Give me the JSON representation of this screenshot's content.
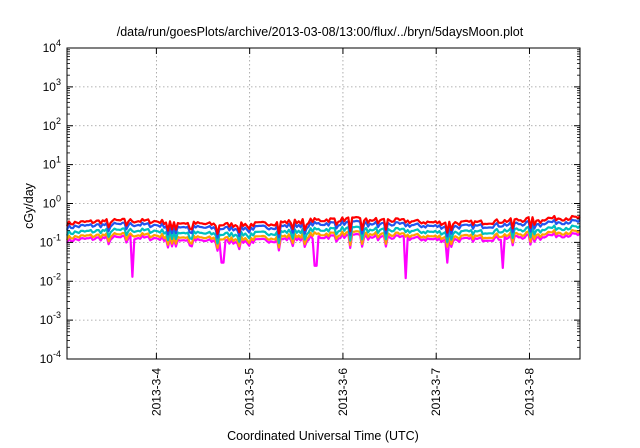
{
  "chart_data": {
    "type": "line",
    "title": "/data/run/goesPlots/archive/2013-03-08/13:00/flux/../bryn/5daysMoon.plot",
    "xlabel": "Coordinated Universal Time (UTC)",
    "ylabel": "cGy/day",
    "yscale": "log",
    "ylim": [
      0.0001,
      10000
    ],
    "y_ticks": [
      {
        "base": "10",
        "exp": "-4",
        "value": 0.0001
      },
      {
        "base": "10",
        "exp": "-3",
        "value": 0.001
      },
      {
        "base": "10",
        "exp": "-2",
        "value": 0.01
      },
      {
        "base": "10",
        "exp": "-1",
        "value": 0.1
      },
      {
        "base": "10",
        "exp": "0",
        "value": 1
      },
      {
        "base": "10",
        "exp": "1",
        "value": 10
      },
      {
        "base": "10",
        "exp": "2",
        "value": 100
      },
      {
        "base": "10",
        "exp": "3",
        "value": 1000
      },
      {
        "base": "10",
        "exp": "4",
        "value": 10000
      }
    ],
    "xlim": [
      "2013-03-03T01:00",
      "2013-03-08T13:00"
    ],
    "x_ticks": [
      "2013-3-4",
      "2013-3-5",
      "2013-3-6",
      "2013-3-7",
      "2013-3-8"
    ],
    "grid": true,
    "legend": "none",
    "series": [
      {
        "color": "#ff0000",
        "level": 0.3,
        "spikes": []
      },
      {
        "color": "#2255ee",
        "level": 0.24,
        "spikes": []
      },
      {
        "color": "#00c0c0",
        "level": 0.17,
        "spikes": []
      },
      {
        "color": "#ffa000",
        "level": 0.13,
        "spikes": []
      },
      {
        "color": "#ff00ff",
        "level": 0.11,
        "spikes": [
          {
            "t": "2013-03-03T18:00",
            "value": 0.013
          },
          {
            "t": "2013-03-04T17:00",
            "value": 0.03
          },
          {
            "t": "2013-03-05T17:00",
            "value": 0.025
          },
          {
            "t": "2013-03-06T16:00",
            "value": 0.012
          },
          {
            "t": "2013-03-07T03:00",
            "value": 0.03
          },
          {
            "t": "2013-03-07T17:00",
            "value": 0.022
          }
        ]
      }
    ]
  }
}
